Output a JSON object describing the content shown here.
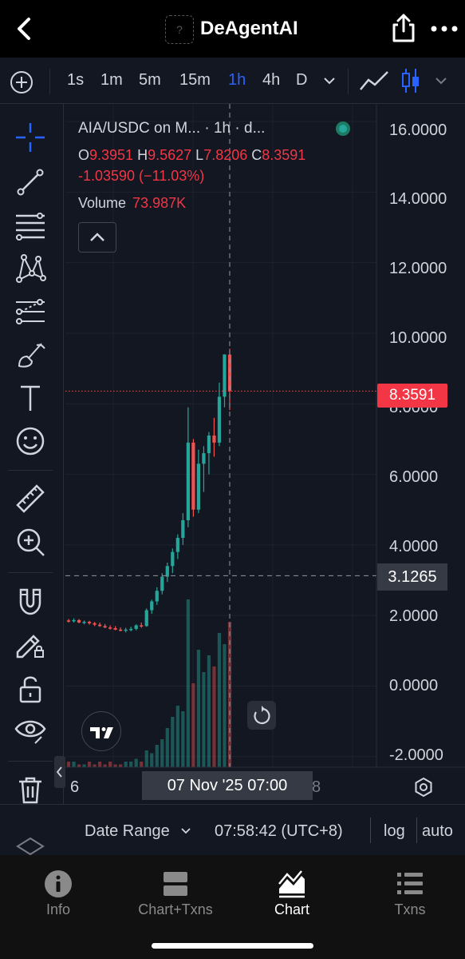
{
  "app": {
    "title": "DeAgentAI",
    "logo_placeholder": "?",
    "back_icon": "chevron-left-icon",
    "share_icon": "share-icon",
    "more_icon": "ellipsis-icon"
  },
  "toolbar": {
    "timeframes": [
      "1s",
      "1m",
      "5m",
      "15m",
      "1h",
      "4h",
      "D"
    ],
    "active_timeframe": "1h",
    "accent_color": "#2962ff"
  },
  "left_tools": [
    "crosshair-icon",
    "trendline-icon",
    "fib-icon",
    "pattern-icon",
    "projection-icon",
    "brush-icon",
    "text-icon",
    "emoji-icon",
    "ruler-icon",
    "zoom-in-icon",
    "magnet-icon",
    "lock-drawing-icon",
    "unlock-icon",
    "eye-icon",
    "trash-icon"
  ],
  "legend": {
    "pair": "AIA/USDC on M...  · 1h · d...",
    "open_label": "O",
    "open": "9.3951",
    "high_label": "H",
    "high": "9.5627",
    "low_label": "L",
    "low": "7.8206",
    "close_label": "C",
    "close": "8.3591",
    "change": "-1.03590 (−11.03%)",
    "volume_label": "Volume",
    "volume": "73.987K"
  },
  "y_axis_labels": [
    "16.0000",
    "14.0000",
    "12.0000",
    "10.0000",
    "8.0000",
    "6.0000",
    "4.0000",
    "2.0000",
    "0.0000",
    "-2.0000"
  ],
  "price_badge": "8.3591",
  "crosshair_price": "3.1265",
  "x_axis": {
    "left_label": "6",
    "crosshair_label": "07 Nov '25    07:00",
    "right_partial": "8"
  },
  "range_bar": {
    "date_range": "Date Range",
    "time": "07:58:42 (UTC+8)",
    "log": "log",
    "auto": "auto"
  },
  "nav": [
    {
      "label": "Info",
      "icon": "info-icon",
      "active": false
    },
    {
      "label": "Chart+Txns",
      "icon": "split-view-icon",
      "active": false
    },
    {
      "label": "Chart",
      "icon": "chart-icon",
      "active": true
    },
    {
      "label": "Txns",
      "icon": "list-icon",
      "active": false
    }
  ],
  "colors": {
    "up": "#26a69a",
    "down": "#ef5350",
    "background": "#131722"
  },
  "chart_data": {
    "type": "candlestick",
    "title": "AIA/USDC on M... · 1h · d...",
    "ylim": [
      -2.3,
      16.5
    ],
    "candles": [
      [
        1.86,
        1.9,
        1.8,
        1.85
      ],
      [
        1.85,
        1.92,
        1.8,
        1.87
      ],
      [
        1.87,
        1.9,
        1.78,
        1.8
      ],
      [
        1.8,
        1.86,
        1.75,
        1.82
      ],
      [
        1.82,
        1.85,
        1.74,
        1.78
      ],
      [
        1.78,
        1.82,
        1.7,
        1.74
      ],
      [
        1.74,
        1.8,
        1.68,
        1.7
      ],
      [
        1.7,
        1.76,
        1.64,
        1.66
      ],
      [
        1.66,
        1.72,
        1.6,
        1.64
      ],
      [
        1.64,
        1.7,
        1.58,
        1.6
      ],
      [
        1.6,
        1.66,
        1.55,
        1.58
      ],
      [
        1.58,
        1.65,
        1.52,
        1.6
      ],
      [
        1.6,
        1.68,
        1.55,
        1.62
      ],
      [
        1.62,
        1.75,
        1.58,
        1.72
      ],
      [
        1.72,
        1.8,
        1.65,
        1.7
      ],
      [
        1.7,
        2.2,
        1.68,
        2.15
      ],
      [
        2.15,
        2.45,
        2.05,
        2.4
      ],
      [
        2.4,
        2.8,
        2.3,
        2.7
      ],
      [
        2.7,
        3.2,
        2.6,
        3.1
      ],
      [
        3.1,
        3.5,
        2.95,
        3.4
      ],
      [
        3.4,
        3.9,
        3.2,
        3.8
      ],
      [
        3.8,
        4.3,
        3.6,
        4.2
      ],
      [
        4.2,
        4.9,
        4.0,
        4.7
      ],
      [
        4.7,
        7.9,
        4.5,
        6.9
      ],
      [
        6.9,
        7.0,
        4.8,
        5.0
      ],
      [
        5.0,
        6.7,
        4.9,
        6.3
      ],
      [
        6.3,
        6.8,
        5.5,
        6.6
      ],
      [
        6.6,
        7.2,
        6.0,
        7.1
      ],
      [
        7.1,
        7.6,
        6.5,
        6.9
      ],
      [
        6.9,
        8.6,
        6.8,
        8.2
      ],
      [
        8.2,
        9.4,
        7.9,
        9.4
      ],
      [
        9.3951,
        9.5627,
        7.8206,
        8.3591
      ]
    ],
    "volume_colors": "up/down per candle",
    "crosshair": {
      "price": 3.1265,
      "time": "07 Nov '25 07:00"
    }
  }
}
